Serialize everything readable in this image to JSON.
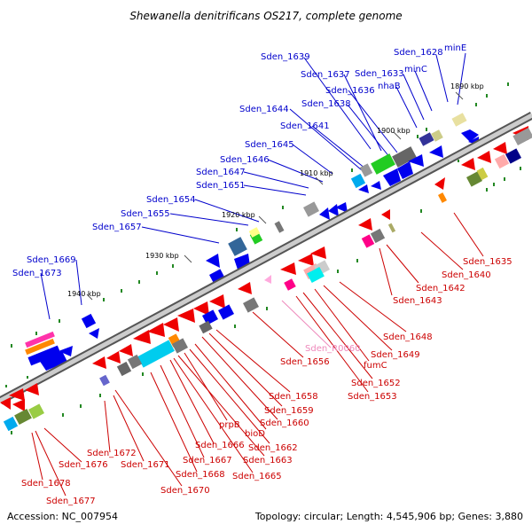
{
  "title": "Shewanella denitrificans OS217, complete genome",
  "footer": {
    "accession": "Accession: NC_007954",
    "topology": "Topology: circular; Length: 4,545,906 bp; Genes: 3,880"
  },
  "colors": {
    "forward_label": "#0000cc",
    "reverse_label": "#cc0000",
    "pseudo_label": "#ee88bb",
    "backbone": "#999999",
    "tick": "#228822"
  },
  "kbp_marks": [
    "1890 kbp",
    "1900 kbp",
    "1910 kbp",
    "1920 kbp",
    "1930 kbp",
    "1940 kbp"
  ],
  "forward_genes": [
    "minE",
    "Sden_1628",
    "minC",
    "Sden_1633",
    "nhaB",
    "Sden_1639",
    "Sden_1637",
    "Sden_1636",
    "Sden_1638",
    "Sden_1644",
    "Sden_1641",
    "Sden_1645",
    "Sden_1646",
    "Sden_1647",
    "Sden_1651",
    "Sden_1654",
    "Sden_1655",
    "Sden_1657",
    "Sden_1669",
    "Sden_1673"
  ],
  "reverse_genes": [
    "Sden_1635",
    "Sden_1640",
    "Sden_1642",
    "Sden_1643",
    "Sden_1648",
    "Sden_1649",
    "Sden_R0060",
    "fumC",
    "Sden_1652",
    "Sden_1653",
    "Sden_1656",
    "Sden_1658",
    "Sden_1659",
    "Sden_1660",
    "bioD",
    "prpB",
    "Sden_1662",
    "Sden_1666",
    "Sden_1663",
    "Sden_1667",
    "Sden_1665",
    "Sden_1668",
    "Sden_1672",
    "Sden_1671",
    "Sden_1676",
    "Sden_1670",
    "Sden_1678",
    "Sden_1677"
  ]
}
